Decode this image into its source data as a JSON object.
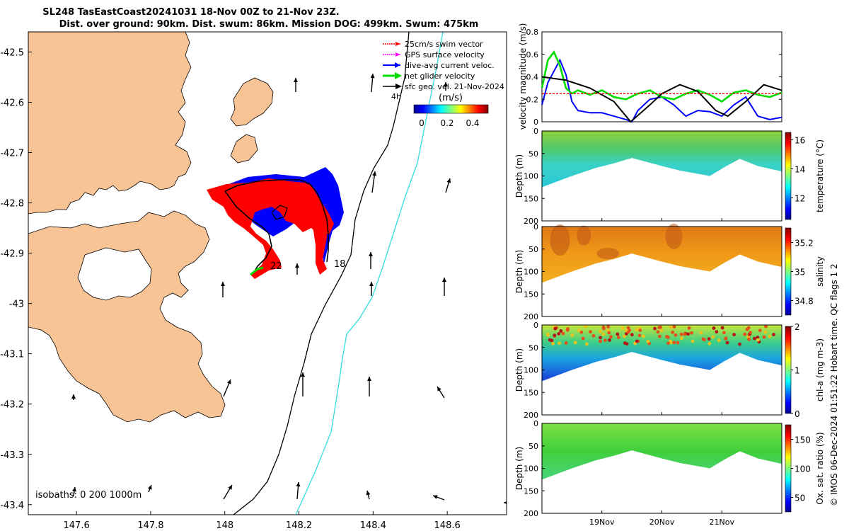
{
  "header": {
    "title_line1": "SL248 TasEastCoast20241031 18-Nov 00Z to 21-Nov 23Z.",
    "title_line2": "Dist. over ground: 90km. Dist. swum: 86km. Mission DOG: 499km. Swum: 475km"
  },
  "credit": "© IMOS 06-Dec-2024 01:51:22 Hobart time. QC flags 1  2",
  "map": {
    "legend": [
      {
        "label": "25cm/s swim vector",
        "color": "#ff0000"
      },
      {
        "label": "GPS surface velocity",
        "color": "#ff00ff"
      },
      {
        "label": "dive-avg current veloc.",
        "color": "#0000ff"
      },
      {
        "label": "net glider velocity",
        "color": "#00dd00"
      },
      {
        "label": "sfc geo. vel. 21-Nov-2024",
        "color": "#000000"
      }
    ],
    "colorbar_label": "(m/s)",
    "time_label": "4h",
    "colorbar_ticks": [
      "0",
      "0.2",
      "0.4"
    ],
    "isobaths_label": "isobaths: 0   200  1000m",
    "track_labels": [
      "22",
      "18"
    ],
    "colors": {
      "land": "#f8c496",
      "sea": "#ffffff",
      "isobath200": "#000000",
      "isobath1000": "#33dddd"
    }
  },
  "chart_data": [
    {
      "type": "map",
      "xlim": [
        147.47,
        148.76
      ],
      "ylim": [
        -43.42,
        -42.46
      ],
      "xticks": [
        "147.6",
        "147.8",
        "148",
        "148.2",
        "148.4",
        "148.6"
      ],
      "yticks": [
        "-42.5",
        "-42.6",
        "-42.7",
        "-42.8",
        "-42.9",
        "-43",
        "-43.1",
        "-43.2",
        "-43.3",
        "-43.4"
      ]
    },
    {
      "type": "line",
      "ylabel": "velocity magnitude (m/s)",
      "ylim": [
        0,
        0.8
      ],
      "yticks": [
        "0",
        "0.2",
        "0.4",
        "0.6",
        "0.8"
      ],
      "x_days": [
        18.0,
        22.0
      ],
      "series": [
        {
          "name": "dive-avg current",
          "color": "#0000ff",
          "x": [
            18.0,
            18.1,
            18.2,
            18.3,
            18.4,
            18.5,
            18.6,
            18.8,
            19.0,
            19.2,
            19.4,
            19.5,
            19.6,
            19.8,
            20.0,
            20.2,
            20.3,
            20.4,
            20.6,
            20.8,
            21.0,
            21.2,
            21.4,
            21.6,
            21.8,
            22.0
          ],
          "y": [
            0.15,
            0.35,
            0.45,
            0.55,
            0.42,
            0.18,
            0.1,
            0.08,
            0.08,
            0.05,
            0.02,
            0.0,
            0.1,
            0.2,
            0.22,
            0.15,
            0.1,
            0.05,
            0.1,
            0.09,
            0.05,
            0.15,
            0.22,
            0.05,
            0.02,
            0.04
          ]
        },
        {
          "name": "net glider velocity",
          "color": "#00dd00",
          "x": [
            18.0,
            18.1,
            18.2,
            18.3,
            18.4,
            18.5,
            18.6,
            18.8,
            19.0,
            19.2,
            19.4,
            19.6,
            19.8,
            20.0,
            20.2,
            20.4,
            20.6,
            20.8,
            21.0,
            21.2,
            21.4,
            21.6,
            21.8,
            22.0
          ],
          "y": [
            0.3,
            0.55,
            0.62,
            0.5,
            0.3,
            0.25,
            0.28,
            0.24,
            0.28,
            0.22,
            0.2,
            0.25,
            0.28,
            0.22,
            0.2,
            0.25,
            0.28,
            0.24,
            0.18,
            0.26,
            0.28,
            0.24,
            0.22,
            0.26
          ]
        },
        {
          "name": "sfc geo. vel.",
          "color": "#000000",
          "x": [
            18.0,
            18.4,
            18.8,
            19.2,
            19.48,
            19.8,
            20.0,
            20.3,
            20.6,
            20.9,
            21.1,
            21.4,
            21.7,
            22.0
          ],
          "y": [
            0.4,
            0.37,
            0.3,
            0.18,
            0.0,
            0.15,
            0.25,
            0.33,
            0.27,
            0.1,
            0.05,
            0.18,
            0.33,
            0.28
          ]
        },
        {
          "name": "25cm/s swim",
          "color": "#ff0000",
          "x": [
            18.0,
            22.0
          ],
          "y": [
            0.25,
            0.25
          ]
        }
      ]
    },
    {
      "type": "heatmap",
      "variable": "temperature",
      "ylabel": "Depth (m)",
      "cbar_label": "temperature (°C)",
      "cbar_ticks": [
        "12",
        "14",
        "16"
      ],
      "clim": [
        10.5,
        16.5
      ],
      "yticks": [
        "0",
        "50",
        "100",
        "150",
        "200"
      ],
      "ylim": [
        0,
        200
      ]
    },
    {
      "type": "heatmap",
      "variable": "salinity",
      "ylabel": "Depth (m)",
      "cbar_label": "salinity",
      "cbar_ticks": [
        "34.8",
        "35",
        "35.2"
      ],
      "clim": [
        34.7,
        35.3
      ],
      "yticks": [
        "0",
        "50",
        "100",
        "150",
        "200"
      ],
      "ylim": [
        0,
        200
      ]
    },
    {
      "type": "heatmap",
      "variable": "chl-a",
      "ylabel": "Depth (m)",
      "cbar_label": "chl-a (mg m-3)",
      "cbar_ticks": [
        "0",
        "1",
        "2"
      ],
      "clim": [
        0,
        2
      ],
      "yticks": [
        "0",
        "50",
        "100",
        "150",
        "200"
      ],
      "ylim": [
        0,
        200
      ]
    },
    {
      "type": "heatmap",
      "variable": "oxygen saturation",
      "ylabel": "Depth (m)",
      "cbar_label": "Ox. sat. ratio (%)",
      "cbar_ticks": [
        "50",
        "100",
        "150"
      ],
      "clim": [
        25,
        175
      ],
      "yticks": [
        "0",
        "50",
        "100",
        "150",
        "200"
      ],
      "ylim": [
        0,
        200
      ],
      "xticks": [
        "19Nov",
        "20Nov",
        "21Nov"
      ]
    }
  ]
}
